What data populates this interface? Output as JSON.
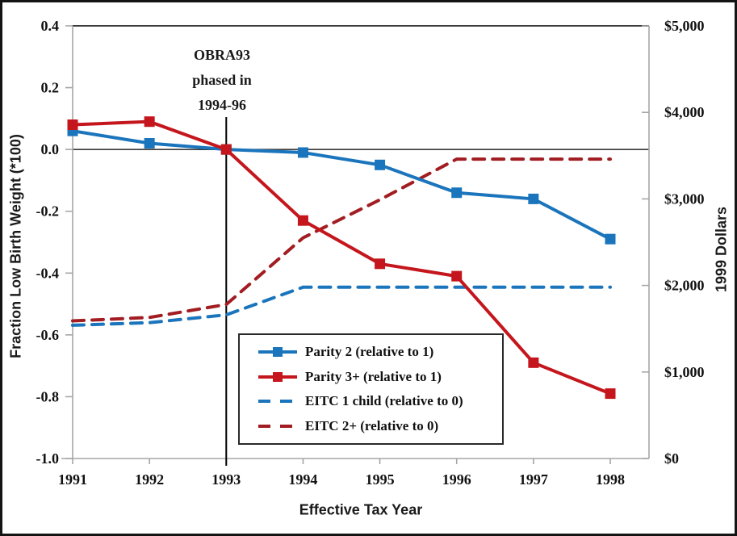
{
  "chart_data": {
    "type": "line",
    "xlabel": "Effective Tax Year",
    "ylabel_left": "Fraction Low Birth Weight (*100)",
    "ylabel_right": "1999 Dollars",
    "x_categories": [
      "1991",
      "1992",
      "1993",
      "1994",
      "1995",
      "1996",
      "1997",
      "1998"
    ],
    "ylim_left": [
      -1.0,
      0.4
    ],
    "ylim_right": [
      0,
      5000
    ],
    "y_ticks_left": [
      "0.4",
      "0.2",
      "0.0",
      "-0.2",
      "-0.4",
      "-0.6",
      "-0.8",
      "-1.0"
    ],
    "y_ticks_right": [
      "$5,000",
      "$4,000",
      "$3,000",
      "$2,000",
      "$1,000",
      "$0"
    ],
    "grid": "none",
    "zero_line": true,
    "legend_position": "inside-bottom-center",
    "series": [
      {
        "name": "Parity 2 (relative to 1)",
        "axis": "left",
        "style": "solid",
        "marker": "square",
        "color": "#1B75BC",
        "values": [
          0.06,
          0.02,
          0.0,
          -0.01,
          -0.05,
          -0.14,
          -0.16,
          -0.29
        ]
      },
      {
        "name": "Parity 3+ (relative to 1)",
        "axis": "left",
        "style": "solid",
        "marker": "square",
        "color": "#C4161C",
        "values": [
          0.08,
          0.09,
          0.0,
          -0.23,
          -0.37,
          -0.41,
          -0.69,
          -0.79
        ]
      },
      {
        "name": "EITC 1 child (relative to 0)",
        "axis": "right",
        "style": "dashed",
        "marker": "none",
        "color": "#1B75BC",
        "values": [
          1540,
          1570,
          1660,
          1980,
          1980,
          1980,
          1980,
          1980
        ]
      },
      {
        "name": "EITC 2+ (relative to 0)",
        "axis": "right",
        "style": "dashed",
        "marker": "none",
        "color": "#A11D22",
        "values": [
          1590,
          1630,
          1780,
          2550,
          2990,
          3460,
          3460,
          3460
        ]
      }
    ],
    "annotation": {
      "lines": [
        "OBRA93",
        "phased in",
        "1994-96"
      ],
      "at_year": "1993"
    }
  }
}
